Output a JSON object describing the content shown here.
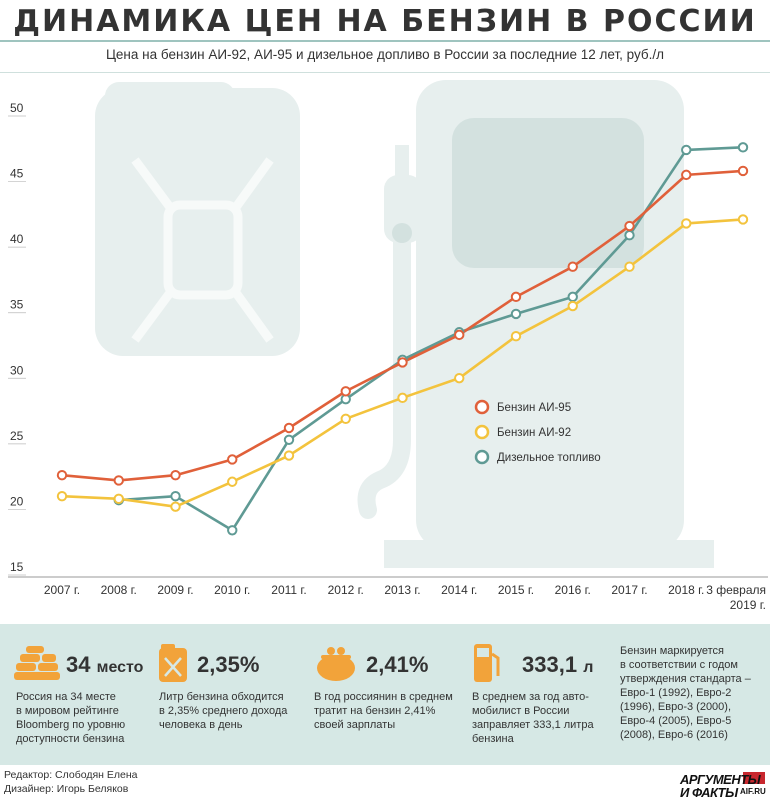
{
  "title": "ДИНАМИКА ЦЕН НА БЕНЗИН В РОССИИ",
  "subtitle": "Цена на бензин АИ-92, АИ-95 и дизельное допливо в России за последние 12 лет, руб./л",
  "colors": {
    "ai95": "#e0603a",
    "ai92": "#f3c33d",
    "diesel": "#5f9a94",
    "background_art": "#e7efee",
    "panel": "#d6e8e5",
    "icon_orange": "#f2a33a"
  },
  "chart_data": {
    "type": "line",
    "categories": [
      "2007 г.",
      "2008 г.",
      "2009 г.",
      "2010 г.",
      "2011 г.",
      "2012 г.",
      "2013 г.",
      "2014 г.",
      "2015 г.",
      "2016 г.",
      "2017 г.",
      "2018 г.",
      "3 февраля 2019 г."
    ],
    "ylim": [
      15,
      50
    ],
    "yticks": [
      15,
      20,
      25,
      30,
      35,
      40,
      45,
      50
    ],
    "series": [
      {
        "name": "Бензин АИ-95",
        "color": "#e0603a",
        "values": [
          22.0,
          21.6,
          22.0,
          23.2,
          25.6,
          28.4,
          30.6,
          32.7,
          35.6,
          37.9,
          41.0,
          44.9,
          45.2
        ]
      },
      {
        "name": "Бензин АИ-92",
        "color": "#f3c33d",
        "values": [
          20.4,
          20.2,
          19.6,
          21.5,
          23.5,
          26.3,
          27.9,
          29.4,
          32.6,
          34.9,
          37.9,
          41.2,
          41.5
        ]
      },
      {
        "name": "Дизельное топливо",
        "color": "#5f9a94",
        "values": [
          null,
          20.1,
          20.4,
          17.8,
          24.7,
          27.8,
          30.8,
          32.9,
          34.3,
          35.6,
          40.3,
          46.8,
          47.0
        ]
      }
    ],
    "legend_placement": "center-right",
    "grid": false
  },
  "stats": [
    {
      "value": "34",
      "unit": "место",
      "text": [
        "Россия на 34 месте",
        "в мировом рейтинге",
        "Bloomberg по уровню",
        "доступности бензина"
      ],
      "icon": "coin-stack-icon"
    },
    {
      "value": "2,35%",
      "unit": "",
      "text": [
        "Литр бензина обходится",
        "в 2,35% среднего дохода",
        "человека в день"
      ],
      "icon": "jerrycan-icon"
    },
    {
      "value": "2,41%",
      "unit": "",
      "text": [
        "В год россиянин в среднем",
        "тратит на бензин 2,41%",
        "своей зарплаты"
      ],
      "icon": "purse-icon"
    },
    {
      "value": "333,1",
      "unit": "л",
      "text": [
        "В среднем за год авто-",
        "мобилист в России",
        "заправляет 333,1 литра",
        "бензина"
      ],
      "icon": "fuel-pump-icon"
    }
  ],
  "standards_text": [
    "Бензин маркируется",
    "в соответствии с годом",
    "утверждения стандарта –",
    "Евро-1 (1992), Евро-2",
    "(1996), Евро-3 (2000),",
    "Евро-4 (2005), Евро-5",
    "(2008), Евро-6 (2016)"
  ],
  "footer": {
    "editor": "Редактор: Слободян Елена",
    "designer": "Дизайнер: Игорь Беляков"
  },
  "logo": {
    "line1": "АРГУМЕНТЫ",
    "line2": "И ФАКТЫ",
    "domain": "AIF.RU"
  }
}
